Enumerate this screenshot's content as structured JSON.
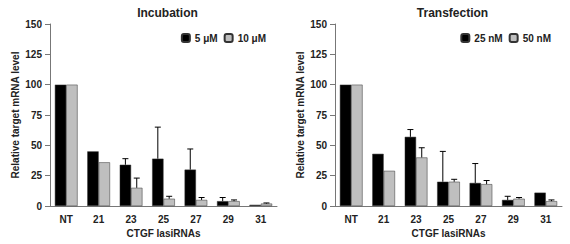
{
  "chart_data": [
    {
      "type": "bar",
      "title": "Incubation",
      "x_label": "CTGF lasiRNAs",
      "y_label": "Relative target mRNA level",
      "categories": [
        "NT",
        "21",
        "23",
        "25",
        "27",
        "29",
        "31"
      ],
      "series": [
        {
          "name": "5 μM",
          "color": "#000000",
          "values": [
            100,
            45,
            34,
            39,
            30,
            4,
            1
          ],
          "errors": [
            null,
            null,
            5,
            26,
            17,
            3,
            null
          ]
        },
        {
          "name": "10 μM",
          "color": "#bfbfbf",
          "values": [
            100,
            36,
            15,
            6,
            5,
            4,
            2
          ],
          "errors": [
            null,
            null,
            8,
            2,
            2,
            1,
            0.5
          ]
        }
      ],
      "ylim": [
        0,
        150
      ],
      "yticks": [
        0,
        25,
        50,
        75,
        100,
        125,
        150
      ],
      "legend": "top-right",
      "grid": false
    },
    {
      "type": "bar",
      "title": "Transfection",
      "x_label": "CTGF lasiRNAs",
      "y_label": "Relative target mRNA level",
      "categories": [
        "NT",
        "21",
        "23",
        "25",
        "27",
        "29",
        "31"
      ],
      "series": [
        {
          "name": "25 nM",
          "color": "#000000",
          "values": [
            100,
            43,
            57,
            20,
            19,
            5,
            11
          ],
          "errors": [
            null,
            null,
            6,
            25,
            16,
            3,
            null
          ]
        },
        {
          "name": "50 nM",
          "color": "#bfbfbf",
          "values": [
            100,
            29,
            40,
            20,
            18,
            6,
            4
          ],
          "errors": [
            null,
            null,
            8,
            2,
            3,
            1,
            1
          ]
        }
      ],
      "ylim": [
        0,
        150
      ],
      "yticks": [
        0,
        25,
        50,
        75,
        100,
        125,
        150
      ],
      "legend": "top-right",
      "grid": false
    }
  ]
}
